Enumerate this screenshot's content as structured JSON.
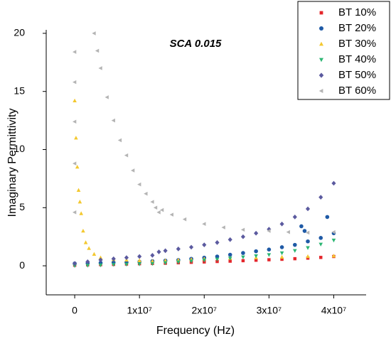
{
  "chart_data": {
    "type": "scatter",
    "title": "SCA 0.015",
    "x_label": "Frequency (Hz)",
    "y_label": "Imaginary Permittivity",
    "xlim": [
      -4400000,
      45000000
    ],
    "ylim": [
      -2.5,
      20.3
    ],
    "xticks": [
      0,
      {
        "value": 10000000,
        "label": "1x10⁷"
      },
      {
        "value": 20000000,
        "label": "2x10⁷"
      },
      {
        "value": 30000000,
        "label": "3x10⁷"
      },
      {
        "value": 40000000,
        "label": "4x10⁷"
      }
    ],
    "yticks": [
      0,
      5,
      10,
      15,
      20
    ],
    "legend": "upper right",
    "series": [
      {
        "name": "BT 10%",
        "color": "#e4262b",
        "marker": "square",
        "x": [
          0,
          2000000,
          4000000,
          6000000,
          8000000,
          10000000,
          12000000,
          14000000,
          16000000,
          18000000,
          20000000,
          22000000,
          24000000,
          26000000,
          28000000,
          30000000,
          32000000,
          34000000,
          36000000,
          38000000,
          40000000
        ],
        "values": [
          0.05,
          0.08,
          0.1,
          0.12,
          0.15,
          0.18,
          0.2,
          0.22,
          0.26,
          0.3,
          0.33,
          0.37,
          0.4,
          0.44,
          0.48,
          0.52,
          0.56,
          0.61,
          0.66,
          0.72,
          0.8
        ]
      },
      {
        "name": "BT 20%",
        "color": "#1f5aa6",
        "marker": "circle",
        "x": [
          0,
          2000000,
          4000000,
          6000000,
          8000000,
          10000000,
          12000000,
          14000000,
          16000000,
          18000000,
          20000000,
          22000000,
          24000000,
          26000000,
          28000000,
          30000000,
          32000000,
          34000000,
          35000000,
          35500000,
          36000000,
          38000000,
          39000000,
          40000000
        ],
        "values": [
          0.2,
          0.22,
          0.25,
          0.28,
          0.3,
          0.35,
          0.4,
          0.45,
          0.5,
          0.6,
          0.7,
          0.8,
          0.95,
          1.1,
          1.25,
          1.4,
          1.6,
          1.8,
          3.4,
          3.0,
          2.1,
          2.4,
          4.2,
          2.8
        ]
      },
      {
        "name": "BT 30%",
        "color": "#f3c82f",
        "marker": "triangle-up",
        "x": [
          0,
          200000,
          400000,
          600000,
          800000,
          1000000,
          1300000,
          1700000,
          2200000,
          3000000,
          4000000,
          6000000,
          8000000,
          10000000,
          12000000,
          14000000,
          16000000,
          18000000,
          20000000,
          24000000,
          28000000,
          32000000,
          36000000,
          40000000
        ],
        "values": [
          14.2,
          11.0,
          8.5,
          6.5,
          5.5,
          4.5,
          3.0,
          2.0,
          1.5,
          1.0,
          0.7,
          0.55,
          0.5,
          0.45,
          0.4,
          0.45,
          0.5,
          0.55,
          0.6,
          0.65,
          0.7,
          0.75,
          0.8,
          0.85
        ]
      },
      {
        "name": "BT 40%",
        "color": "#2cb673",
        "marker": "triangle-down",
        "x": [
          0,
          2000000,
          4000000,
          6000000,
          8000000,
          10000000,
          12000000,
          14000000,
          16000000,
          18000000,
          20000000,
          22000000,
          24000000,
          26000000,
          28000000,
          30000000,
          32000000,
          34000000,
          36000000,
          38000000,
          40000000
        ],
        "values": [
          0.0,
          0.03,
          0.06,
          0.1,
          0.12,
          0.15,
          0.18,
          0.25,
          0.32,
          0.4,
          0.48,
          0.56,
          0.65,
          0.75,
          0.85,
          0.95,
          1.1,
          1.3,
          1.55,
          1.85,
          2.2
        ]
      },
      {
        "name": "BT 50%",
        "color": "#5b5a9f",
        "marker": "diamond",
        "x": [
          0,
          2000000,
          4000000,
          6000000,
          8000000,
          10000000,
          12000000,
          13000000,
          14000000,
          16000000,
          18000000,
          20000000,
          22000000,
          24000000,
          26000000,
          28000000,
          30000000,
          32000000,
          34000000,
          36000000,
          38000000,
          40000000
        ],
        "values": [
          0.2,
          0.35,
          0.5,
          0.6,
          0.7,
          0.8,
          0.9,
          1.2,
          1.3,
          1.45,
          1.6,
          1.8,
          2.0,
          2.25,
          2.5,
          2.8,
          3.15,
          3.6,
          4.2,
          4.9,
          5.9,
          7.1
        ]
      },
      {
        "name": "BT 60%",
        "color": "#b4b4b4",
        "marker": "triangle-left",
        "x": [
          0,
          0,
          0,
          0,
          0,
          3000000,
          3500000,
          4000000,
          5000000,
          6000000,
          7000000,
          8000000,
          9000000,
          10000000,
          11000000,
          12000000,
          12500000,
          13000000,
          13500000,
          15000000,
          17000000,
          20000000,
          23000000,
          26000000,
          30000000,
          33000000,
          36000000,
          40000000
        ],
        "values": [
          18.4,
          15.8,
          12.4,
          8.8,
          4.6,
          20.0,
          18.5,
          17.0,
          14.5,
          12.5,
          10.8,
          9.5,
          8.2,
          7.0,
          6.2,
          5.5,
          5.0,
          4.6,
          4.8,
          4.4,
          4.0,
          3.6,
          3.3,
          3.1,
          3.0,
          2.9,
          2.85,
          2.9
        ]
      }
    ]
  }
}
